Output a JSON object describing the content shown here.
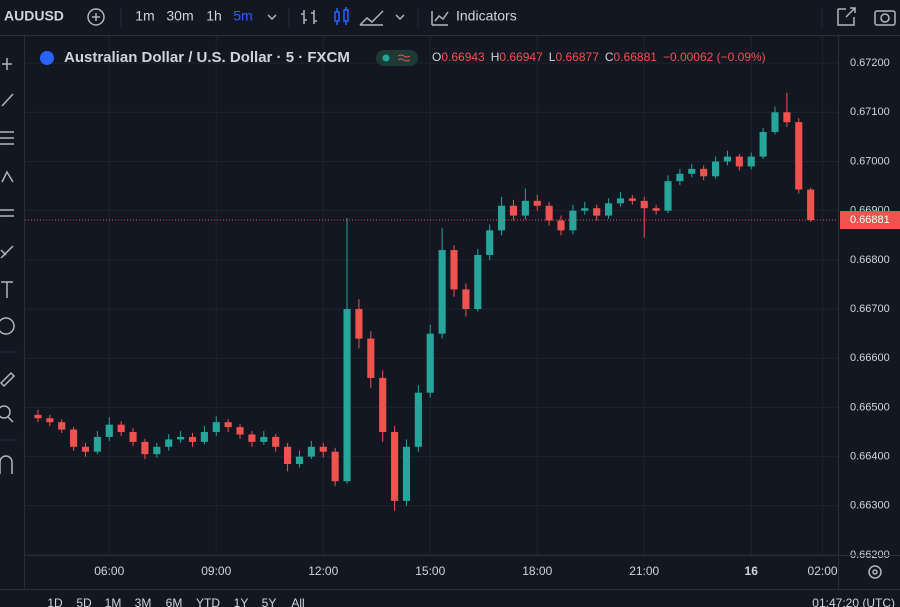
{
  "toolbar": {
    "symbol": "AUDUSD",
    "intervals": [
      "1m",
      "30m",
      "1h",
      "5m"
    ],
    "indicators": "Indicators"
  },
  "legend": {
    "title": "Australian Dollar / U.S. Dollar · 5 · FXCM",
    "o_key": "O",
    "o": "0.66943",
    "h_key": "H",
    "h": "0.66947",
    "l_key": "L",
    "l": "0.66877",
    "c_key": "C",
    "c": "0.66881",
    "change": "−0.00062 (−0.09%)"
  },
  "chart_data": {
    "type": "candlestick",
    "x": [
      240,
      260,
      280,
      300,
      320,
      340,
      360,
      380,
      400,
      420,
      440,
      460,
      480,
      500,
      520,
      540,
      560,
      580,
      600,
      620,
      640,
      660,
      680,
      700,
      720,
      740,
      760,
      780,
      800,
      820,
      840,
      860,
      880,
      900,
      920,
      940,
      960,
      980,
      1000,
      1020,
      1040,
      1060,
      1080,
      1100,
      1120,
      1140,
      1160,
      1180,
      1200,
      1220,
      1240,
      1260,
      1280,
      1300,
      1320,
      1340,
      1360,
      1380,
      1400,
      1420,
      1440,
      1460,
      1480,
      1500,
      1520,
      1540
    ],
    "candles": [
      [
        0.66485,
        0.66495,
        0.6647,
        0.66478
      ],
      [
        0.66478,
        0.66485,
        0.66462,
        0.6647
      ],
      [
        0.6647,
        0.66476,
        0.66448,
        0.66455
      ],
      [
        0.66455,
        0.6646,
        0.66412,
        0.6642
      ],
      [
        0.6642,
        0.66428,
        0.664,
        0.6641
      ],
      [
        0.6641,
        0.66452,
        0.66405,
        0.6644
      ],
      [
        0.6644,
        0.6648,
        0.66432,
        0.66465
      ],
      [
        0.66465,
        0.66472,
        0.66442,
        0.6645
      ],
      [
        0.6645,
        0.66458,
        0.66422,
        0.6643
      ],
      [
        0.6643,
        0.66436,
        0.66395,
        0.66405
      ],
      [
        0.66405,
        0.66428,
        0.66398,
        0.6642
      ],
      [
        0.6642,
        0.66446,
        0.66412,
        0.66435
      ],
      [
        0.66435,
        0.66452,
        0.66428,
        0.6644
      ],
      [
        0.6644,
        0.66448,
        0.6642,
        0.6643
      ],
      [
        0.6643,
        0.66462,
        0.66425,
        0.6645
      ],
      [
        0.6645,
        0.66482,
        0.66442,
        0.6647
      ],
      [
        0.6647,
        0.66476,
        0.6645,
        0.6646
      ],
      [
        0.6646,
        0.66466,
        0.66436,
        0.66445
      ],
      [
        0.66445,
        0.66452,
        0.6642,
        0.6643
      ],
      [
        0.6643,
        0.66452,
        0.66424,
        0.6644
      ],
      [
        0.6644,
        0.66446,
        0.6641,
        0.6642
      ],
      [
        0.6642,
        0.66428,
        0.6637,
        0.66385
      ],
      [
        0.66385,
        0.66412,
        0.66378,
        0.664
      ],
      [
        0.664,
        0.66432,
        0.66395,
        0.6642
      ],
      [
        0.6642,
        0.66428,
        0.66398,
        0.6641
      ],
      [
        0.6641,
        0.66418,
        0.6634,
        0.6635
      ],
      [
        0.6635,
        0.66885,
        0.66345,
        0.667
      ],
      [
        0.667,
        0.6672,
        0.6662,
        0.6664
      ],
      [
        0.6664,
        0.66655,
        0.6654,
        0.6656
      ],
      [
        0.6656,
        0.66575,
        0.6643,
        0.6645
      ],
      [
        0.6645,
        0.66462,
        0.6629,
        0.6631
      ],
      [
        0.6631,
        0.66435,
        0.663,
        0.6642
      ],
      [
        0.6642,
        0.66545,
        0.6641,
        0.6653
      ],
      [
        0.6653,
        0.66668,
        0.6652,
        0.6665
      ],
      [
        0.6665,
        0.66865,
        0.6664,
        0.6682
      ],
      [
        0.6682,
        0.6683,
        0.66725,
        0.6674
      ],
      [
        0.6674,
        0.66752,
        0.66685,
        0.667
      ],
      [
        0.667,
        0.66822,
        0.66695,
        0.6681
      ],
      [
        0.6681,
        0.66872,
        0.668,
        0.6686
      ],
      [
        0.6686,
        0.66928,
        0.6685,
        0.6691
      ],
      [
        0.6691,
        0.66922,
        0.6688,
        0.6689
      ],
      [
        0.6689,
        0.66945,
        0.66882,
        0.6692
      ],
      [
        0.6692,
        0.66932,
        0.669,
        0.6691
      ],
      [
        0.6691,
        0.66918,
        0.6687,
        0.6688
      ],
      [
        0.6688,
        0.6689,
        0.6685,
        0.6686
      ],
      [
        0.6686,
        0.66912,
        0.66852,
        0.669
      ],
      [
        0.669,
        0.66918,
        0.66892,
        0.66905
      ],
      [
        0.66905,
        0.66912,
        0.6688,
        0.6689
      ],
      [
        0.6689,
        0.66925,
        0.66884,
        0.66915
      ],
      [
        0.66915,
        0.66938,
        0.66908,
        0.66925
      ],
      [
        0.66925,
        0.66932,
        0.66912,
        0.6692
      ],
      [
        0.6692,
        0.66928,
        0.66845,
        0.66905
      ],
      [
        0.66905,
        0.66912,
        0.66892,
        0.669
      ],
      [
        0.669,
        0.66972,
        0.66895,
        0.6696
      ],
      [
        0.6696,
        0.66985,
        0.66952,
        0.66975
      ],
      [
        0.66975,
        0.66995,
        0.66968,
        0.66985
      ],
      [
        0.66985,
        0.66992,
        0.66962,
        0.6697
      ],
      [
        0.6697,
        0.6701,
        0.66965,
        0.67
      ],
      [
        0.67,
        0.67022,
        0.66992,
        0.6701
      ],
      [
        0.6701,
        0.67015,
        0.66982,
        0.6699
      ],
      [
        0.6699,
        0.67018,
        0.66984,
        0.6701
      ],
      [
        0.6701,
        0.67068,
        0.67005,
        0.6706
      ],
      [
        0.6706,
        0.67112,
        0.67055,
        0.671
      ],
      [
        0.671,
        0.6714,
        0.6707,
        0.6708
      ],
      [
        0.6708,
        0.67088,
        0.66935,
        0.66943
      ],
      [
        0.66943,
        0.66947,
        0.66877,
        0.66881
      ]
    ],
    "xlim": [
      230,
      1586
    ],
    "xticks": [
      {
        "value": 360,
        "label": "06:00"
      },
      {
        "value": 540,
        "label": "09:00"
      },
      {
        "value": 720,
        "label": "12:00"
      },
      {
        "value": 900,
        "label": "15:00"
      },
      {
        "value": 1080,
        "label": "18:00"
      },
      {
        "value": 1260,
        "label": "21:00"
      },
      {
        "value": 1440,
        "label": "16"
      },
      {
        "value": 1560,
        "label": "02:00"
      }
    ],
    "ylim": [
      0.662,
      0.67247
    ],
    "yticks": [
      {
        "value": 0.662,
        "label": "0.66200"
      },
      {
        "value": 0.663,
        "label": "0.66300"
      },
      {
        "value": 0.664,
        "label": "0.66400"
      },
      {
        "value": 0.665,
        "label": "0.66500"
      },
      {
        "value": 0.666,
        "label": "0.66600"
      },
      {
        "value": 0.667,
        "label": "0.66700"
      },
      {
        "value": 0.668,
        "label": "0.66800"
      },
      {
        "value": 0.669,
        "label": "0.66900"
      },
      {
        "value": 0.67,
        "label": "0.67000"
      },
      {
        "value": 0.671,
        "label": "0.67100"
      },
      {
        "value": 0.672,
        "label": "0.67200"
      }
    ],
    "last_price": 0.66881,
    "up_color": "#26a69a",
    "down_color": "#ef5350",
    "grid": true
  },
  "range_bar": {
    "ranges": [
      "1D",
      "5D",
      "1M",
      "3M",
      "6M",
      "YTD",
      "1Y",
      "5Y",
      "All"
    ],
    "clock": "01:47:20 (UTC)"
  }
}
